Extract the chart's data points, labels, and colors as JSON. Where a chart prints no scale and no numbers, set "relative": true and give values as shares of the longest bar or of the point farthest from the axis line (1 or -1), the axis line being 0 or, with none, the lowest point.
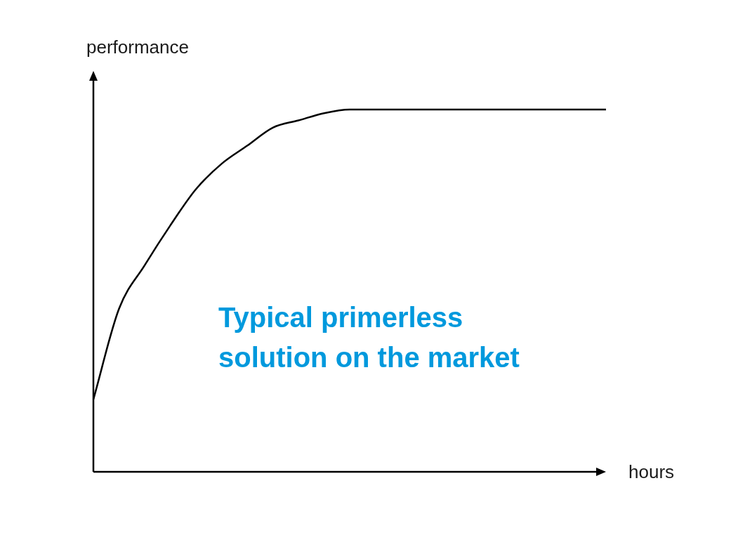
{
  "chart_data": {
    "type": "line",
    "relative": true,
    "xlabel": "hours",
    "ylabel": "performance",
    "categories": [
      null,
      null,
      null,
      null,
      null,
      null,
      null,
      null,
      null,
      null,
      null,
      null,
      null,
      null,
      null,
      null,
      null,
      null,
      null,
      null,
      null
    ],
    "series": [
      {
        "color": "#000000",
        "values": [
          0.2,
          0.45,
          0.57,
          0.68,
          0.78,
          0.85,
          0.9,
          0.95,
          0.97,
          0.99,
          1,
          1,
          1,
          1,
          1,
          1,
          1,
          1,
          1,
          1,
          1
        ]
      }
    ],
    "annotations": [
      "Typical primerless solution on the market"
    ]
  }
}
